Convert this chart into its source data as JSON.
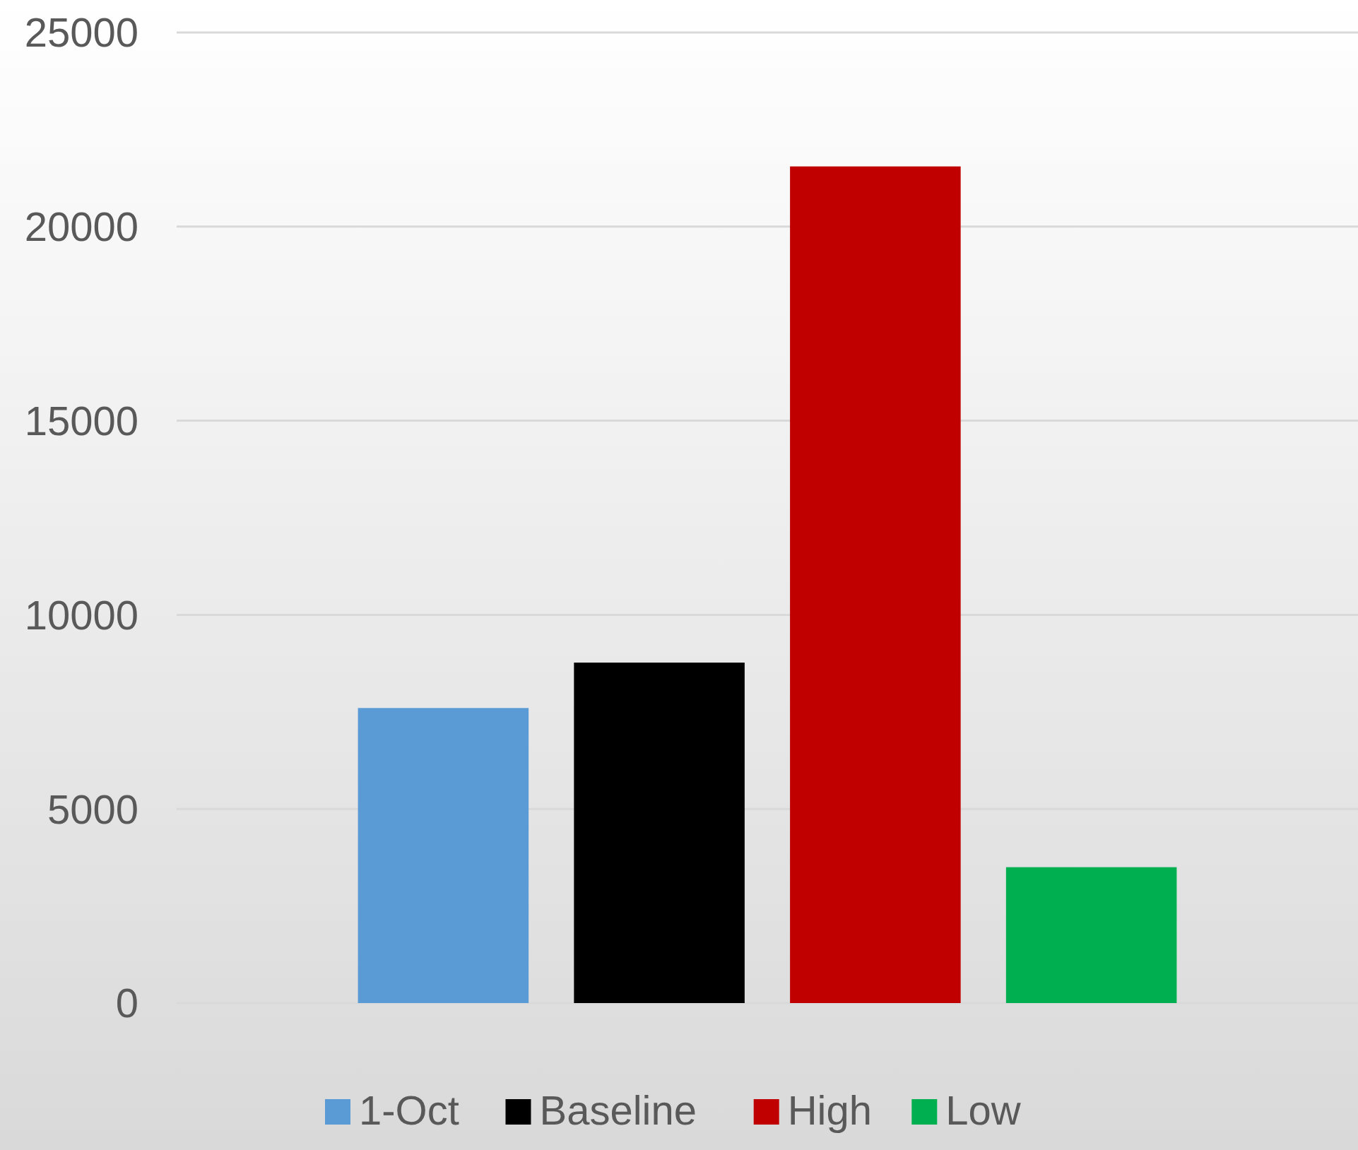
{
  "chart_data": {
    "type": "bar",
    "categories": [
      null
    ],
    "series": [
      {
        "name": "1-Oct",
        "color": "#5b9bd5",
        "values": [
          7600
        ]
      },
      {
        "name": "Baseline",
        "color": "#000000",
        "values": [
          8770
        ]
      },
      {
        "name": "High",
        "color": "#c00000",
        "values": [
          21550
        ]
      },
      {
        "name": "Low",
        "color": "#00b050",
        "values": [
          3500
        ]
      }
    ],
    "ylim": [
      0,
      25000
    ],
    "yticks": [
      0,
      5000,
      10000,
      15000,
      20000,
      25000
    ],
    "grid": "y",
    "legend": "bottom"
  }
}
